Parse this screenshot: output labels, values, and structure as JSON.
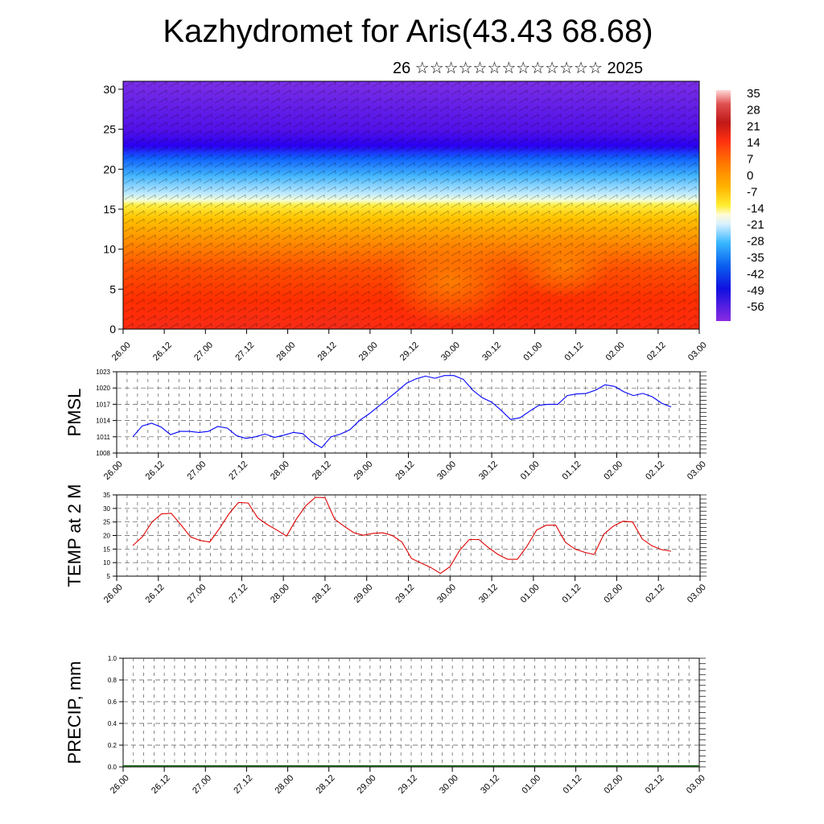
{
  "title": "Kazhydromet for Aris(43.43 68.68)",
  "subtitle": "26 ☆☆☆☆☆☆☆☆☆☆☆☆☆ 2025",
  "colorbar": {
    "labels": [
      "35",
      "28",
      "21",
      "14",
      "7",
      "0",
      "-7",
      "-14",
      "-21",
      "-28",
      "-35",
      "-42",
      "-49",
      "-56"
    ],
    "colors": [
      "#ffe0e0",
      "#c81e1e",
      "#ff4000",
      "#ff8c00",
      "#ffd700",
      "#fff6a0",
      "#d7f0ff",
      "#3fb8ff",
      "#0070e0",
      "#0000d0",
      "#8a2be2"
    ]
  },
  "chart_data": [
    {
      "type": "heatmap",
      "title": "",
      "xlabel": "",
      "ylabel": "",
      "x_ticks": [
        "26.00",
        "26.12",
        "27.00",
        "27.12",
        "28.00",
        "28.12",
        "29.00",
        "29.12",
        "30.00",
        "30.12",
        "01.00",
        "01.12",
        "02.00",
        "02.12",
        "03.00"
      ],
      "y_ticks": [
        "0",
        "5",
        "10",
        "15",
        "20",
        "25",
        "30"
      ],
      "ylim": [
        0,
        31
      ],
      "value_range": [
        -56,
        35
      ],
      "grid": false
    },
    {
      "type": "line",
      "title": "",
      "ylabel": "PMSL",
      "ylim": [
        1008,
        1023
      ],
      "y_ticks": [
        "1008",
        "1011",
        "1014",
        "1017",
        "1020",
        "1023"
      ],
      "x_ticks": [
        "26.00",
        "26.12",
        "27.00",
        "27.12",
        "28.00",
        "28.12",
        "29.00",
        "29.12",
        "30.00",
        "30.12",
        "01.00",
        "01.12",
        "02.00",
        "02.12",
        "03.00"
      ],
      "color": "#0000ff",
      "grid": true,
      "values": [
        1011,
        1013,
        1013.5,
        1012.8,
        1011.4,
        1012,
        1012,
        1011.8,
        1012,
        1012.9,
        1012.6,
        1011.2,
        1010.7,
        1011,
        1011.5,
        1010.9,
        1011.3,
        1011.8,
        1011.6,
        1010,
        1009,
        1011,
        1011.5,
        1012.3,
        1014,
        1015.2,
        1016.6,
        1018,
        1019.4,
        1020.9,
        1021.7,
        1022.2,
        1021.8,
        1022.3,
        1022.3,
        1021.6,
        1019.6,
        1018.2,
        1017.4,
        1015.9,
        1014.2,
        1014.5,
        1015.7,
        1016.8,
        1017,
        1017,
        1018.6,
        1018.9,
        1019,
        1019.6,
        1020.6,
        1020.3,
        1019.3,
        1018.6,
        1019,
        1018.4,
        1017.2,
        1016.5
      ]
    },
    {
      "type": "line",
      "title": "",
      "ylabel": "TEMP at 2 M",
      "ylim": [
        5,
        35
      ],
      "y_ticks": [
        "5",
        "10",
        "15",
        "20",
        "25",
        "30",
        "35"
      ],
      "x_ticks": [
        "26.00",
        "26.12",
        "27.00",
        "27.12",
        "28.00",
        "28.12",
        "29.00",
        "29.12",
        "30.00",
        "30.12",
        "01.00",
        "01.12",
        "02.00",
        "02.12",
        "03.00"
      ],
      "color": "#e00000",
      "grid": true,
      "values": [
        16.3,
        19.5,
        25,
        28,
        28.2,
        24,
        19.5,
        18.2,
        17.6,
        22.5,
        28,
        32.2,
        32,
        26.5,
        24,
        22,
        19.8,
        26,
        31,
        34.1,
        34,
        26,
        23.4,
        21,
        20.1,
        20.8,
        21,
        20,
        17.6,
        11.5,
        9.8,
        8.2,
        6,
        8.5,
        14.5,
        18.5,
        18.5,
        15.5,
        13,
        11.2,
        11.2,
        16,
        22,
        23.8,
        23.8,
        17.5,
        15,
        13.8,
        13,
        20.5,
        23.5,
        25.3,
        25,
        18.7,
        16.2,
        14.8,
        14.2
      ]
    },
    {
      "type": "bar",
      "title": "",
      "ylabel": "PRECIP, mm",
      "ylim": [
        0,
        1.0
      ],
      "y_ticks": [
        "0.0",
        "0.2",
        "0.4",
        "0.6",
        "0.8",
        "1.0"
      ],
      "x_ticks": [
        "26.00",
        "26.12",
        "27.00",
        "27.12",
        "28.00",
        "28.12",
        "29.00",
        "29.12",
        "30.00",
        "30.12",
        "01.00",
        "01.12",
        "02.00",
        "02.12",
        "03.00"
      ],
      "grid": true,
      "values": []
    }
  ]
}
